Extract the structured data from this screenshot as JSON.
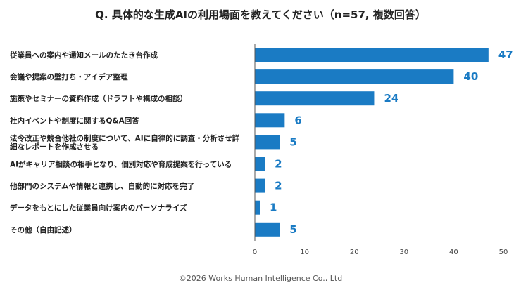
{
  "chart_data": {
    "type": "bar",
    "orientation": "horizontal",
    "title": "Q. 具体的な生成AIの利用場面を教えてください（n=57, 複数回答）",
    "categories": [
      "従業員への案内や通知メールのたたき台作成",
      "会議や提案の壁打ち・アイデア整理",
      "施策やセミナーの資料作成（ドラフトや構成の相談）",
      "社内イベントや制度に関するQ&A回答",
      "法令改正や競合他社の制度について、AIに自律的に調査・分析させ詳細なレポートを作成させる",
      "AIがキャリア相談の相手となり、個別対応や育成提案を行っている",
      "他部門のシステムや情報と連携し、自動的に対応を完了",
      "データをもとにした従業員向け案内のパーソナライズ",
      "その他（自由記述）"
    ],
    "category_lines": [
      [
        "従業員への案内や通知メールのたたき台作成"
      ],
      [
        "会議や提案の壁打ち・アイデア整理"
      ],
      [
        "施策やセミナーの資料作成（ドラフトや構成の相談）"
      ],
      [
        "社内イベントや制度に関するQ&A回答"
      ],
      [
        "法令改正や競合他社の制度について、AIに自律的に調査・分析させ詳",
        "細なレポートを作成させる"
      ],
      [
        "AIがキャリア相談の相手となり、個別対応や育成提案を行っている"
      ],
      [
        "他部門のシステムや情報と連携し、自動的に対応を完了"
      ],
      [
        "データをもとにした従業員向け案内のパーソナライズ"
      ],
      [
        "その他（自由記述）"
      ]
    ],
    "values": [
      47,
      40,
      24,
      6,
      5,
      2,
      2,
      1,
      5
    ],
    "xlim": [
      0,
      50
    ],
    "xticks": [
      0,
      10,
      20,
      30,
      40,
      50
    ],
    "grid": false,
    "bar_color": "#1a7bc4",
    "data_labels": true
  },
  "footer": {
    "copyright": "©2026 Works Human Intelligence Co., Ltd"
  }
}
